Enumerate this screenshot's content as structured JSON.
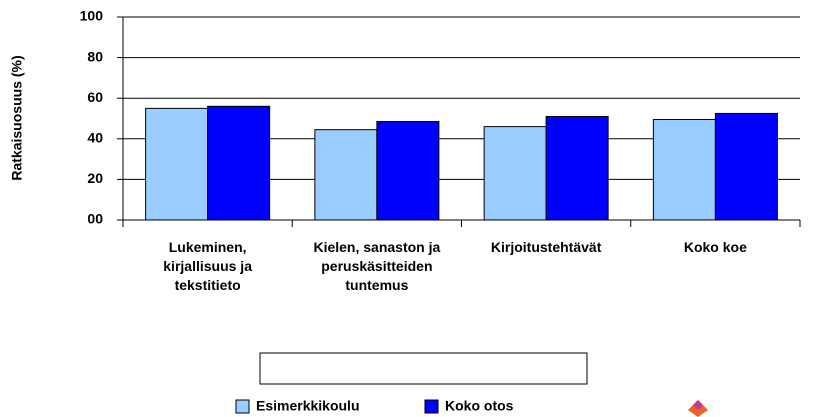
{
  "chart_data": {
    "type": "bar",
    "y_label": "Ratkaisuosuus (%)",
    "categories": [
      "Lukeminen, kirjallisuus ja tekstitieto",
      "Kielen, sanaston ja peruskäsitteiden tuntemus",
      "Kirjoitustehtävät",
      "Koko koe"
    ],
    "series": [
      {
        "name": "Esimerkkikoulu",
        "color": "#99ccff",
        "values": [
          55,
          44.5,
          46,
          49.5
        ]
      },
      {
        "name": "Koko otos",
        "color": "#0000ff",
        "values": [
          56,
          48.5,
          51,
          52.5
        ]
      }
    ],
    "ylim": [
      0,
      100
    ],
    "yticks": [
      {
        "value": 0,
        "label": "00"
      },
      20,
      40,
      60,
      80,
      100
    ],
    "grid": true
  }
}
